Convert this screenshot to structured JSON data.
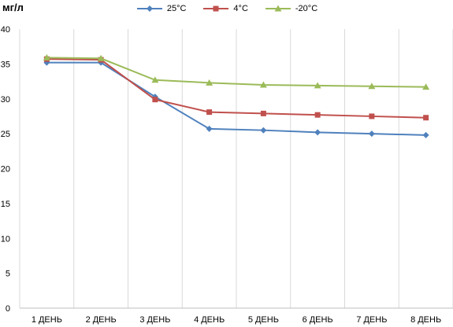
{
  "chart_data": {
    "type": "line",
    "y_unit_label": "мг/л",
    "categories": [
      "1 ДЕНЬ",
      "2 ДЕНЬ",
      "3 ДЕНЬ",
      "4 ДЕНЬ",
      "5 ДЕНЬ",
      "6 ДЕНЬ",
      "7 ДЕНЬ",
      "8 ДЕНЬ"
    ],
    "ylim": [
      0,
      40
    ],
    "yticks": [
      "0",
      "5",
      "10",
      "15",
      "20",
      "25",
      "30",
      "35",
      "40"
    ],
    "grid": "vertical",
    "legend_position": "top",
    "series": [
      {
        "name": "25°C",
        "color": "#4f81bd",
        "marker": "diamond",
        "values": [
          35.2,
          35.2,
          30.3,
          25.7,
          25.5,
          25.2,
          25.0,
          24.8
        ]
      },
      {
        "name": "4°C",
        "color": "#c0504d",
        "marker": "square",
        "values": [
          35.7,
          35.6,
          29.9,
          28.1,
          27.9,
          27.7,
          27.5,
          27.3
        ]
      },
      {
        "name": "-20°C",
        "color": "#9bbb59",
        "marker": "triangle",
        "values": [
          35.9,
          35.8,
          32.7,
          32.3,
          32.0,
          31.9,
          31.8,
          31.7
        ]
      }
    ]
  }
}
